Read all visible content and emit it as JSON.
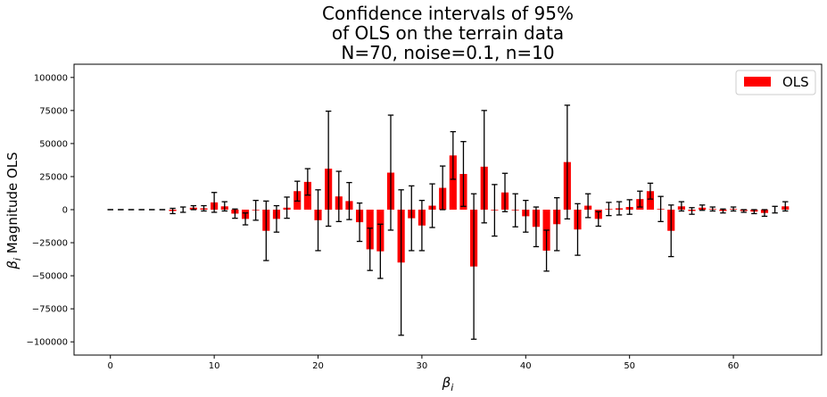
{
  "chart_data": {
    "type": "bar",
    "title_lines": [
      "Confidence intervals of 95%",
      "of OLS on the terrain data",
      "N=70, noise=0.1, n=10"
    ],
    "xlabel": {
      "symbol": "β",
      "sub": "i"
    },
    "ylabel": {
      "symbol": "β",
      "sub": "i",
      "text": " Magnitude OLS"
    },
    "xlim": [
      -3.5,
      68.5
    ],
    "ylim": [
      -110000,
      110000
    ],
    "xticks": [
      0,
      10,
      20,
      30,
      40,
      50,
      60
    ],
    "yticks": [
      -100000,
      -75000,
      -50000,
      -25000,
      0,
      25000,
      50000,
      75000,
      100000
    ],
    "grid": false,
    "legend": {
      "position": "top-right",
      "entries": [
        {
          "label": "OLS",
          "color": "#ff0000"
        }
      ]
    },
    "colors": {
      "bar": "#ff0000",
      "errorbar": "#000000"
    },
    "series": [
      {
        "name": "OLS",
        "x": [
          0,
          1,
          2,
          3,
          4,
          5,
          6,
          7,
          8,
          9,
          10,
          11,
          12,
          13,
          14,
          15,
          16,
          17,
          18,
          19,
          20,
          21,
          22,
          23,
          24,
          25,
          26,
          27,
          28,
          29,
          30,
          31,
          32,
          33,
          34,
          35,
          36,
          37,
          38,
          39,
          40,
          41,
          42,
          43,
          44,
          45,
          46,
          47,
          48,
          49,
          50,
          51,
          52,
          53,
          54,
          55,
          56,
          57,
          58,
          59,
          60,
          61,
          62,
          63,
          64,
          65
        ],
        "values": [
          0,
          0,
          0,
          0,
          0,
          0,
          -1000,
          0,
          1500,
          1000,
          5500,
          2500,
          -3000,
          -7000,
          -500,
          -16000,
          -7000,
          1500,
          14000,
          21000,
          -8000,
          31000,
          10000,
          6500,
          -9500,
          -30000,
          -31500,
          28000,
          -40000,
          -6500,
          -12000,
          3000,
          16500,
          41000,
          27000,
          -43000,
          32500,
          -500,
          13000,
          -500,
          -5000,
          -13000,
          -31000,
          -11000,
          36000,
          -15000,
          3000,
          -7000,
          500,
          1000,
          2000,
          8000,
          14000,
          500,
          -16000,
          2500,
          -1000,
          1500,
          500,
          -1000,
          500,
          -1000,
          -1500,
          -2500,
          0,
          2500
        ],
        "ci": [
          0,
          0,
          0,
          0,
          0,
          0,
          2000,
          2000,
          1500,
          2000,
          7500,
          3500,
          3500,
          4500,
          7500,
          22500,
          10000,
          8000,
          7500,
          10000,
          23000,
          43500,
          19000,
          14000,
          14500,
          16000,
          20500,
          43500,
          55000,
          24500,
          19000,
          16500,
          16500,
          18000,
          24500,
          55000,
          42500,
          19500,
          14500,
          12500,
          12000,
          15000,
          15500,
          20000,
          43000,
          19500,
          9000,
          5500,
          5000,
          5000,
          5500,
          6000,
          6000,
          9500,
          19500,
          3500,
          2500,
          2000,
          1500,
          1500,
          1500,
          1000,
          1500,
          2500,
          2500,
          3500
        ]
      }
    ]
  }
}
